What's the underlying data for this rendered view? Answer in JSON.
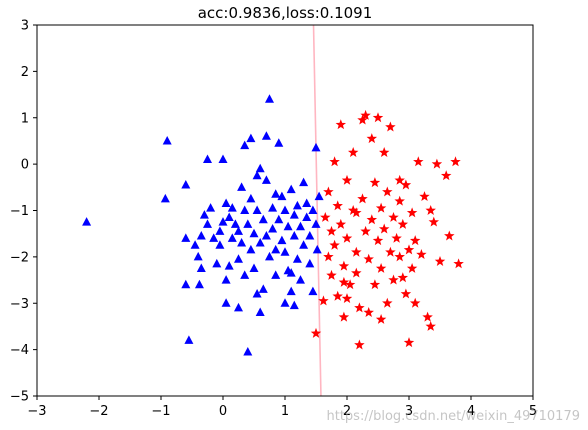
{
  "watermark": "https://blog.csdn.net/weixin_49710179",
  "chart_data": {
    "type": "scatter",
    "title": "acc:0.9836,loss:0.1091",
    "xlabel": "",
    "ylabel": "",
    "xlim": [
      -3,
      5
    ],
    "ylim": [
      -5,
      3
    ],
    "xticks": [
      -3,
      -2,
      -1,
      0,
      1,
      2,
      3,
      4,
      5
    ],
    "yticks": [
      -5,
      -4,
      -3,
      -2,
      -1,
      0,
      1,
      2,
      3
    ],
    "grid": false,
    "legend": "none",
    "decision_boundary": {
      "color": "#ffb6c1",
      "points": [
        [
          1.46,
          3.0
        ],
        [
          1.58,
          -5.0
        ]
      ]
    },
    "series": [
      {
        "marker": "triangle",
        "color": "#0000ff",
        "points": [
          [
            -2.2,
            -1.25
          ],
          [
            -0.9,
            0.5
          ],
          [
            -0.93,
            -0.75
          ],
          [
            -0.6,
            -0.45
          ],
          [
            -0.55,
            -3.8
          ],
          [
            -0.6,
            -1.6
          ],
          [
            -0.45,
            -1.75
          ],
          [
            -0.4,
            -2.0
          ],
          [
            -0.35,
            -1.55
          ],
          [
            -0.38,
            -2.6
          ],
          [
            -0.3,
            -1.1
          ],
          [
            -0.25,
            -1.3
          ],
          [
            -0.2,
            -0.95
          ],
          [
            -0.25,
            0.1
          ],
          [
            -0.1,
            -2.15
          ],
          [
            -0.15,
            -1.6
          ],
          [
            -0.05,
            -1.75
          ],
          [
            0.0,
            -1.25
          ],
          [
            0.05,
            -0.85
          ],
          [
            0.0,
            0.1
          ],
          [
            -0.05,
            -1.45
          ],
          [
            0.05,
            -2.5
          ],
          [
            0.1,
            -2.2
          ],
          [
            0.1,
            -1.15
          ],
          [
            0.15,
            -1.6
          ],
          [
            0.15,
            -0.95
          ],
          [
            0.2,
            -1.3
          ],
          [
            0.25,
            -2.05
          ],
          [
            0.25,
            -1.45
          ],
          [
            0.3,
            -0.5
          ],
          [
            0.3,
            -1.7
          ],
          [
            0.35,
            -1.0
          ],
          [
            0.35,
            -2.4
          ],
          [
            0.4,
            -4.05
          ],
          [
            0.4,
            -1.3
          ],
          [
            0.45,
            -0.75
          ],
          [
            0.45,
            -1.85
          ],
          [
            0.5,
            -1.5
          ],
          [
            0.5,
            -2.25
          ],
          [
            0.55,
            -0.25
          ],
          [
            0.55,
            -1.0
          ],
          [
            0.6,
            -3.2
          ],
          [
            0.6,
            -1.7
          ],
          [
            0.65,
            -1.2
          ],
          [
            0.65,
            -2.7
          ],
          [
            0.7,
            -0.35
          ],
          [
            0.7,
            -1.55
          ],
          [
            0.75,
            1.4
          ],
          [
            0.75,
            -2.0
          ],
          [
            0.8,
            -0.95
          ],
          [
            0.8,
            -1.4
          ],
          [
            0.85,
            -2.4
          ],
          [
            0.9,
            0.45
          ],
          [
            0.9,
            -1.2
          ],
          [
            0.95,
            -1.65
          ],
          [
            0.95,
            -0.7
          ],
          [
            1.0,
            -1.9
          ],
          [
            1.0,
            -1.0
          ],
          [
            1.05,
            -2.3
          ],
          [
            1.05,
            -1.35
          ],
          [
            1.1,
            -0.55
          ],
          [
            1.1,
            -2.75
          ],
          [
            1.15,
            -1.1
          ],
          [
            1.15,
            -1.55
          ],
          [
            1.2,
            -2.05
          ],
          [
            1.2,
            -0.9
          ],
          [
            1.25,
            -1.35
          ],
          [
            1.25,
            -2.5
          ],
          [
            1.3,
            -0.4
          ],
          [
            1.3,
            -1.75
          ],
          [
            1.35,
            -1.15
          ],
          [
            1.35,
            -0.85
          ],
          [
            1.4,
            -1.55
          ],
          [
            1.4,
            -2.15
          ],
          [
            1.45,
            -1.0
          ],
          [
            1.45,
            -2.75
          ],
          [
            1.5,
            -1.3
          ],
          [
            1.5,
            0.35
          ],
          [
            1.55,
            -0.7
          ],
          [
            1.52,
            -1.85
          ],
          [
            0.45,
            0.55
          ],
          [
            0.6,
            -0.1
          ],
          [
            0.7,
            0.6
          ],
          [
            0.85,
            -0.65
          ],
          [
            1.15,
            -3.05
          ],
          [
            0.25,
            -3.1
          ],
          [
            0.05,
            -3.0
          ],
          [
            -0.6,
            -2.6
          ],
          [
            -0.35,
            -2.25
          ],
          [
            0.55,
            -2.8
          ],
          [
            1.0,
            -3.0
          ],
          [
            0.35,
            0.4
          ],
          [
            1.1,
            -2.35
          ],
          [
            0.85,
            -1.85
          ]
        ]
      },
      {
        "marker": "star",
        "color": "#ff0000",
        "points": [
          [
            1.5,
            -3.65
          ],
          [
            1.62,
            -2.95
          ],
          [
            1.65,
            -1.15
          ],
          [
            1.7,
            -0.6
          ],
          [
            1.7,
            -2.0
          ],
          [
            1.75,
            -2.4
          ],
          [
            1.75,
            -1.45
          ],
          [
            1.8,
            0.05
          ],
          [
            1.8,
            -1.75
          ],
          [
            1.85,
            -2.85
          ],
          [
            1.85,
            -0.9
          ],
          [
            1.9,
            0.85
          ],
          [
            1.9,
            -1.3
          ],
          [
            1.95,
            -2.2
          ],
          [
            1.95,
            -3.3
          ],
          [
            2.0,
            -0.35
          ],
          [
            2.0,
            -1.6
          ],
          [
            2.05,
            -2.6
          ],
          [
            2.1,
            0.25
          ],
          [
            2.1,
            -1.0
          ],
          [
            2.15,
            -1.9
          ],
          [
            2.15,
            -2.35
          ],
          [
            2.2,
            -3.1
          ],
          [
            2.25,
            0.95
          ],
          [
            2.25,
            -0.75
          ],
          [
            2.3,
            -1.45
          ],
          [
            2.3,
            1.05
          ],
          [
            2.35,
            -2.05
          ],
          [
            2.35,
            -3.2
          ],
          [
            2.4,
            -1.2
          ],
          [
            2.4,
            0.55
          ],
          [
            2.45,
            -0.4
          ],
          [
            2.45,
            -2.6
          ],
          [
            2.5,
            -1.65
          ],
          [
            2.55,
            -0.95
          ],
          [
            2.55,
            -2.25
          ],
          [
            2.6,
            -1.4
          ],
          [
            2.6,
            0.25
          ],
          [
            2.65,
            -3.0
          ],
          [
            2.65,
            -0.6
          ],
          [
            2.7,
            -1.9
          ],
          [
            2.7,
            0.8
          ],
          [
            2.75,
            -1.15
          ],
          [
            2.75,
            -2.5
          ],
          [
            2.8,
            -1.6
          ],
          [
            2.85,
            -0.8
          ],
          [
            2.85,
            -2.0
          ],
          [
            2.9,
            -2.45
          ],
          [
            2.9,
            -1.3
          ],
          [
            2.95,
            -0.45
          ],
          [
            2.95,
            -2.8
          ],
          [
            3.0,
            -1.85
          ],
          [
            3.0,
            -3.85
          ],
          [
            3.05,
            -1.05
          ],
          [
            3.05,
            -2.25
          ],
          [
            3.1,
            -1.65
          ],
          [
            3.1,
            -3.0
          ],
          [
            3.15,
            0.05
          ],
          [
            3.2,
            -1.95
          ],
          [
            3.25,
            -0.7
          ],
          [
            3.3,
            -3.3
          ],
          [
            3.35,
            -1.0
          ],
          [
            3.35,
            -3.5
          ],
          [
            3.45,
            0.0
          ],
          [
            3.5,
            -2.1
          ],
          [
            3.6,
            -0.25
          ],
          [
            3.65,
            -1.55
          ],
          [
            3.75,
            0.05
          ],
          [
            3.8,
            -2.15
          ],
          [
            2.2,
            -3.9
          ],
          [
            2.5,
            1.0
          ],
          [
            2.85,
            -0.35
          ],
          [
            2.0,
            -2.9
          ],
          [
            1.95,
            -2.55
          ],
          [
            2.15,
            -1.05
          ],
          [
            3.4,
            -1.25
          ],
          [
            2.55,
            -3.35
          ]
        ]
      }
    ]
  }
}
